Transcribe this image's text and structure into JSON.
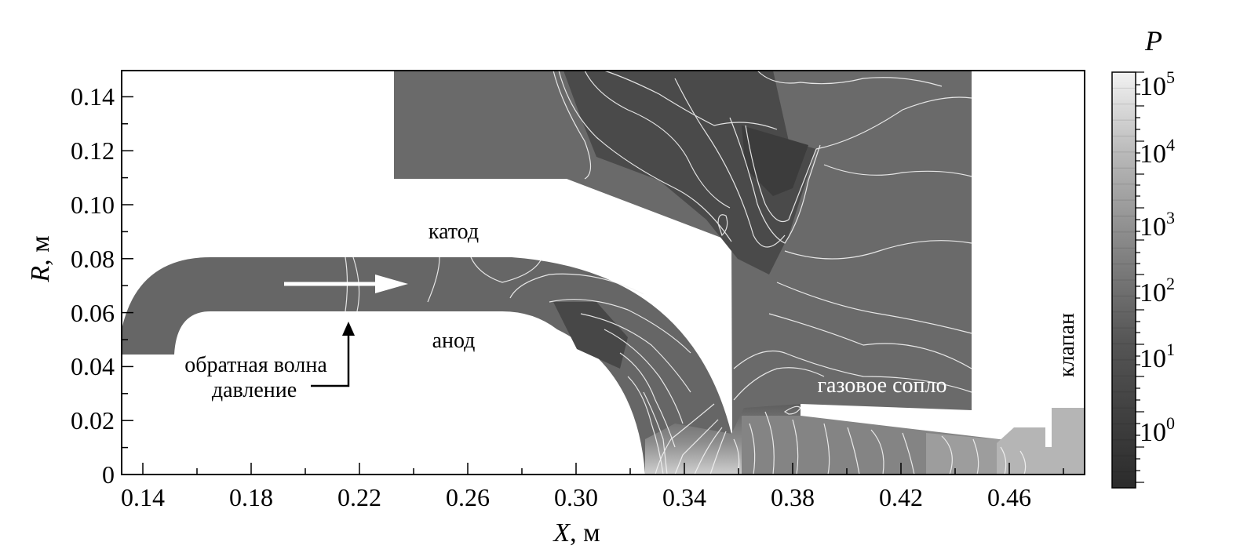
{
  "figure": {
    "x_axis": {
      "label_var": "X",
      "label_unit": ", м",
      "ticks": [
        "0.14",
        "0.18",
        "0.22",
        "0.26",
        "0.30",
        "0.34",
        "0.38",
        "0.42",
        "0.46"
      ]
    },
    "y_axis": {
      "label_var": "R",
      "label_unit": ", м",
      "ticks": [
        "0",
        "0.02",
        "0.04",
        "0.06",
        "0.08",
        "0.10",
        "0.12",
        "0.14"
      ]
    },
    "colorbar": {
      "title": "P",
      "scale": "log",
      "ticks": [
        {
          "base": "10",
          "exp": "0"
        },
        {
          "base": "10",
          "exp": "1"
        },
        {
          "base": "10",
          "exp": "2"
        },
        {
          "base": "10",
          "exp": "3"
        },
        {
          "base": "10",
          "exp": "4"
        },
        {
          "base": "10",
          "exp": "5"
        }
      ],
      "colors": {
        "low": "#2b2b2b",
        "high": "#f2f2f2"
      }
    },
    "annotations": {
      "cathode": "катод",
      "anode": "анод",
      "backwave_line1": "обратная волна",
      "backwave_line2": "давление",
      "gas_nozzle": "газовое сопло",
      "valve": "клапан"
    },
    "colors": {
      "upper_region": "#6a6a6a",
      "channel": "#666666",
      "dark_pocket": "#3f3f3f",
      "nozzle_gas": "#808080",
      "valve_gas": "#b5b5b5",
      "contour_lines": "#f4f4f4"
    }
  }
}
